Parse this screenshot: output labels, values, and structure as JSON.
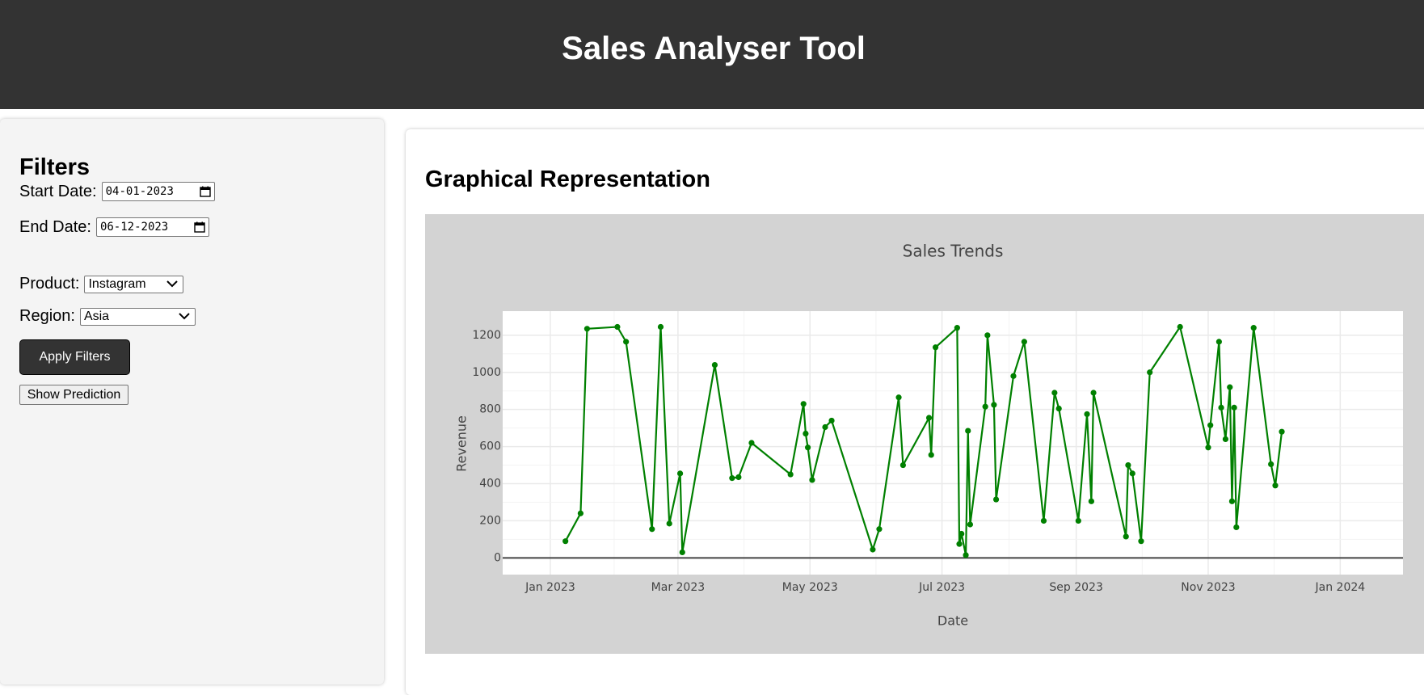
{
  "app": {
    "title": "Sales Analyser Tool"
  },
  "filters": {
    "heading": "Filters",
    "start_date": {
      "label": "Start Date:",
      "value": "04-01-2023"
    },
    "end_date": {
      "label": "End Date:",
      "value": "06-12-2023"
    },
    "product": {
      "label": "Product:",
      "value": "Instagram"
    },
    "region": {
      "label": "Region:",
      "value": "Asia"
    },
    "apply_label": "Apply Filters",
    "prediction_label": "Show Prediction"
  },
  "main": {
    "heading": "Graphical Representation"
  },
  "colors": {
    "line": "#008000",
    "header_bg": "#333333",
    "plot_bg": "#d3d3d3"
  },
  "chart_data": {
    "type": "line",
    "title": "Sales Trends",
    "xlabel": "Date",
    "ylabel": "Revenue",
    "ylim": [
      -90,
      1330
    ],
    "xlim": [
      "2022-12-10",
      "2024-01-30"
    ],
    "x_ticks": [
      "Jan 2023",
      "Mar 2023",
      "May 2023",
      "Jul 2023",
      "Sep 2023",
      "Nov 2023",
      "Jan 2024"
    ],
    "x_tick_dates": [
      "2023-01-01",
      "2023-03-01",
      "2023-05-01",
      "2023-07-01",
      "2023-09-01",
      "2023-11-01",
      "2024-01-01"
    ],
    "y_ticks": [
      0,
      200,
      400,
      600,
      800,
      1000,
      1200
    ],
    "grid": true,
    "series": [
      {
        "name": "",
        "color": "#008000",
        "points": [
          [
            "2023-01-08",
            90
          ],
          [
            "2023-01-15",
            240
          ],
          [
            "2023-01-18",
            1235
          ],
          [
            "2023-02-01",
            1245
          ],
          [
            "2023-02-05",
            1165
          ],
          [
            "2023-02-17",
            155
          ],
          [
            "2023-02-21",
            1245
          ],
          [
            "2023-02-25",
            185
          ],
          [
            "2023-03-02",
            455
          ],
          [
            "2023-03-03",
            30
          ],
          [
            "2023-03-18",
            1040
          ],
          [
            "2023-03-26",
            430
          ],
          [
            "2023-03-29",
            435
          ],
          [
            "2023-04-04",
            620
          ],
          [
            "2023-04-22",
            450
          ],
          [
            "2023-04-28",
            830
          ],
          [
            "2023-04-29",
            670
          ],
          [
            "2023-04-30",
            595
          ],
          [
            "2023-05-02",
            420
          ],
          [
            "2023-05-08",
            705
          ],
          [
            "2023-05-11",
            740
          ],
          [
            "2023-05-30",
            45
          ],
          [
            "2023-06-02",
            155
          ],
          [
            "2023-06-11",
            865
          ],
          [
            "2023-06-13",
            500
          ],
          [
            "2023-06-25",
            755
          ],
          [
            "2023-06-26",
            555
          ],
          [
            "2023-06-28",
            1135
          ],
          [
            "2023-07-08",
            1240
          ],
          [
            "2023-07-09",
            75
          ],
          [
            "2023-07-10",
            130
          ],
          [
            "2023-07-12",
            15
          ],
          [
            "2023-07-13",
            685
          ],
          [
            "2023-07-14",
            180
          ],
          [
            "2023-07-21",
            815
          ],
          [
            "2023-07-22",
            1200
          ],
          [
            "2023-07-25",
            825
          ],
          [
            "2023-07-26",
            315
          ],
          [
            "2023-08-03",
            980
          ],
          [
            "2023-08-08",
            1165
          ],
          [
            "2023-08-17",
            200
          ],
          [
            "2023-08-22",
            890
          ],
          [
            "2023-08-24",
            805
          ],
          [
            "2023-09-02",
            200
          ],
          [
            "2023-09-06",
            775
          ],
          [
            "2023-09-08",
            305
          ],
          [
            "2023-09-09",
            890
          ],
          [
            "2023-09-24",
            115
          ],
          [
            "2023-09-25",
            500
          ],
          [
            "2023-09-27",
            455
          ],
          [
            "2023-10-01",
            90
          ],
          [
            "2023-10-05",
            1000
          ],
          [
            "2023-10-19",
            1245
          ],
          [
            "2023-11-01",
            595
          ],
          [
            "2023-11-02",
            715
          ],
          [
            "2023-11-06",
            1165
          ],
          [
            "2023-11-07",
            810
          ],
          [
            "2023-11-09",
            640
          ],
          [
            "2023-11-11",
            920
          ],
          [
            "2023-11-12",
            305
          ],
          [
            "2023-11-13",
            810
          ],
          [
            "2023-11-14",
            165
          ],
          [
            "2023-11-22",
            1240
          ],
          [
            "2023-11-30",
            505
          ],
          [
            "2023-12-02",
            390
          ],
          [
            "2023-12-05",
            680
          ]
        ]
      }
    ]
  }
}
